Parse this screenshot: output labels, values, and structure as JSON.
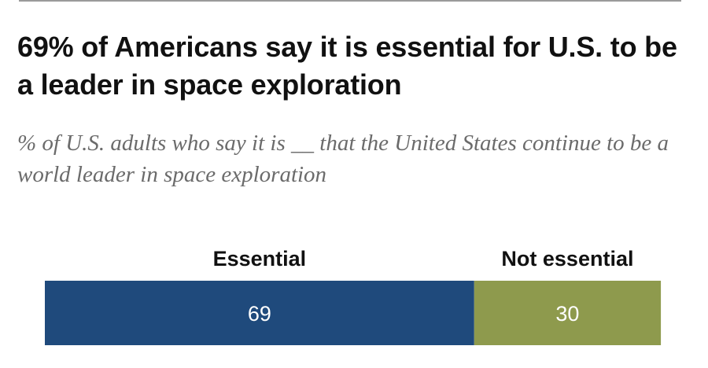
{
  "title": "69% of Americans say it is essential for U.S. to be a leader in space exploration",
  "subtitle": "% of U.S. adults who say it is __ that the United States continue to be a world leader in space exploration",
  "chart_data": {
    "type": "bar",
    "orientation": "horizontal-stacked",
    "categories": [
      "Essential",
      "Not essential"
    ],
    "values": [
      69,
      30
    ],
    "data_labels": [
      "69",
      "30"
    ],
    "colors": [
      "#1f4a7c",
      "#8e9a4d"
    ],
    "title": "69% of Americans say it is essential for U.S. to be a leader in space exploration",
    "xlabel": "",
    "ylabel": "",
    "ylim": [
      0,
      100
    ],
    "grid": false,
    "legend": "top"
  }
}
